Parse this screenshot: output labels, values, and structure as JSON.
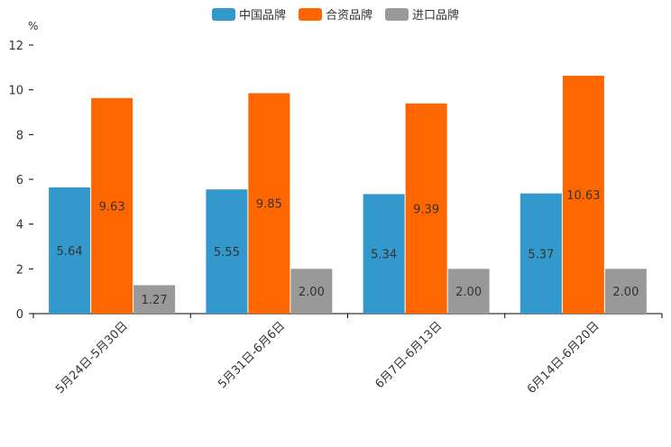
{
  "chart_data": {
    "type": "bar",
    "unit": "%",
    "categories": [
      "5月24日-5月30日",
      "5月31日-6月6日",
      "6月7日-6月13日",
      "6月14日-6月20日"
    ],
    "series": [
      {
        "name": "中国品牌",
        "color": "#3399CC",
        "values": [
          5.64,
          5.55,
          5.34,
          5.37
        ],
        "labels": [
          "5.64",
          "5.55",
          "5.34",
          "5.37"
        ]
      },
      {
        "name": "合资品牌",
        "color": "#FF6600",
        "values": [
          9.63,
          9.85,
          9.39,
          10.63
        ],
        "labels": [
          "9.63",
          "9.85",
          "9.39",
          "10.63"
        ]
      },
      {
        "name": "进口品牌",
        "color": "#999999",
        "values": [
          1.27,
          2.0,
          2.0,
          2.0
        ],
        "labels": [
          "1.27",
          "2.00",
          "2.00",
          "2.00"
        ]
      }
    ],
    "ylim": [
      0,
      12
    ],
    "yticks": [
      "0",
      "2",
      "4",
      "6",
      "8",
      "10",
      "12"
    ],
    "legend_position": "top-center"
  }
}
